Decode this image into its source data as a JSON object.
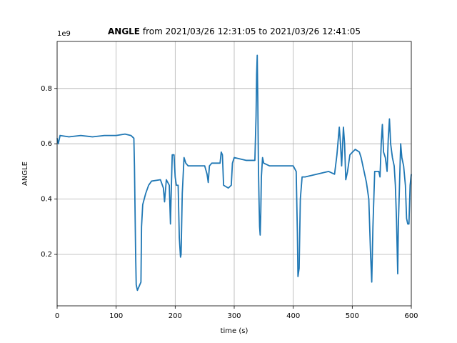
{
  "chart_data": {
    "type": "line",
    "title": {
      "bold": "ANGLE",
      "rest": "from 2021/03/26 12:31:05 to 2021/03/26 12:41:05"
    },
    "x_label": "time (s)",
    "y_label": "ANGLE",
    "y_offset_label": "1e9",
    "xlim": [
      0,
      600
    ],
    "xticks": [
      0,
      100,
      200,
      300,
      400,
      500,
      600
    ],
    "ylim": [
      0.014,
      0.97
    ],
    "yticks": [
      0.2,
      0.4,
      0.6,
      0.8
    ],
    "grid": true,
    "series": [
      {
        "name": "ANGLE",
        "color": "#1f77b4",
        "x": [
          0,
          2,
          5,
          20,
          40,
          60,
          80,
          100,
          115,
          125,
          130,
          131,
          133,
          134,
          136,
          140,
          142,
          143,
          145,
          150,
          155,
          160,
          175,
          180,
          182,
          185,
          190,
          192,
          193,
          195,
          198,
          200,
          202,
          205,
          207,
          209,
          210,
          212,
          215,
          218,
          222,
          250,
          254,
          256,
          258,
          262,
          270,
          276,
          278,
          280,
          282,
          290,
          295,
          297,
          300,
          320,
          335,
          337,
          338,
          339,
          340,
          341,
          342,
          343,
          344,
          345,
          346,
          348,
          350,
          360,
          380,
          400,
          405,
          407,
          408,
          410,
          412,
          415,
          420,
          440,
          460,
          470,
          474,
          478,
          480,
          482,
          485,
          487,
          489,
          492,
          496,
          505,
          512,
          515,
          520,
          524,
          528,
          531,
          533,
          535,
          538,
          540,
          545,
          547,
          549,
          551,
          553,
          556,
          559,
          561,
          563,
          565,
          568,
          571,
          573,
          575,
          577,
          578,
          580,
          582,
          584,
          587,
          590,
          592,
          594,
          596,
          598,
          600
        ],
        "values": [
          0.62,
          0.6,
          0.63,
          0.625,
          0.63,
          0.625,
          0.63,
          0.63,
          0.635,
          0.63,
          0.62,
          0.52,
          0.2,
          0.09,
          0.07,
          0.09,
          0.1,
          0.3,
          0.38,
          0.42,
          0.45,
          0.465,
          0.47,
          0.44,
          0.39,
          0.47,
          0.45,
          0.31,
          0.4,
          0.56,
          0.56,
          0.48,
          0.45,
          0.45,
          0.26,
          0.19,
          0.2,
          0.42,
          0.55,
          0.53,
          0.52,
          0.52,
          0.49,
          0.46,
          0.52,
          0.53,
          0.53,
          0.53,
          0.57,
          0.56,
          0.45,
          0.44,
          0.45,
          0.53,
          0.55,
          0.54,
          0.54,
          0.7,
          0.85,
          0.92,
          0.75,
          0.52,
          0.4,
          0.3,
          0.27,
          0.35,
          0.48,
          0.55,
          0.53,
          0.52,
          0.52,
          0.52,
          0.5,
          0.28,
          0.12,
          0.15,
          0.4,
          0.48,
          0.48,
          0.49,
          0.5,
          0.49,
          0.56,
          0.66,
          0.6,
          0.52,
          0.66,
          0.6,
          0.47,
          0.5,
          0.56,
          0.58,
          0.57,
          0.55,
          0.5,
          0.46,
          0.4,
          0.2,
          0.1,
          0.3,
          0.5,
          0.5,
          0.5,
          0.48,
          0.6,
          0.67,
          0.57,
          0.55,
          0.5,
          0.62,
          0.69,
          0.6,
          0.55,
          0.52,
          0.45,
          0.32,
          0.13,
          0.3,
          0.45,
          0.6,
          0.55,
          0.52,
          0.45,
          0.33,
          0.31,
          0.31,
          0.45,
          0.49
        ]
      }
    ]
  }
}
